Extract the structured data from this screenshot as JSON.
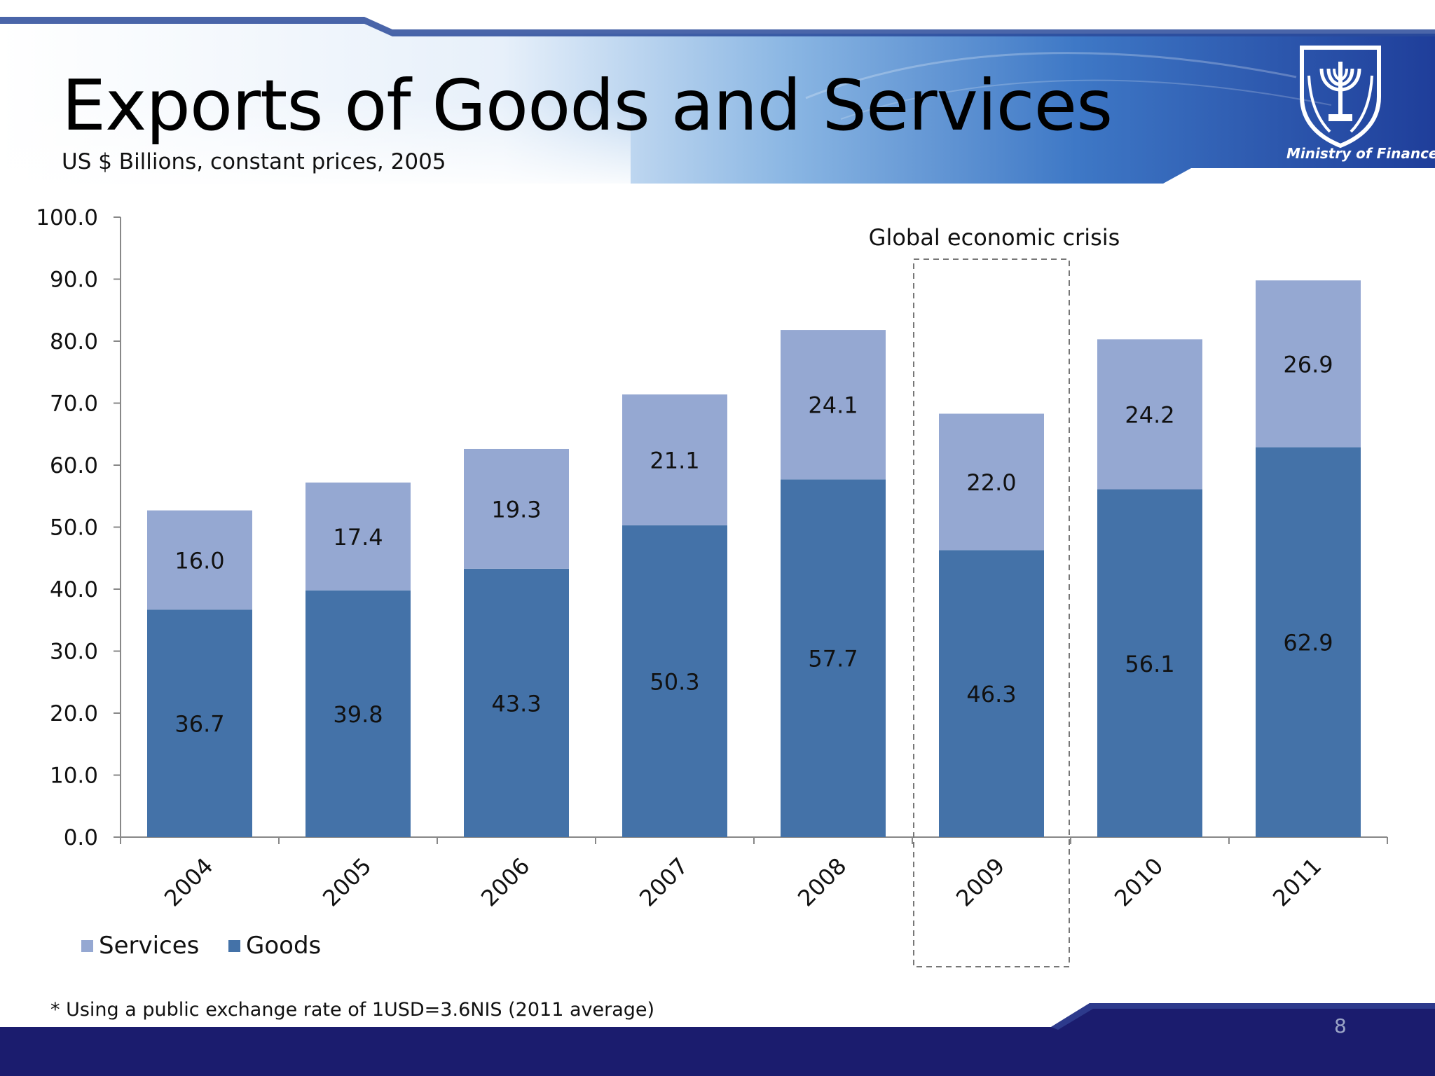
{
  "slide": {
    "title": "Exports of Goods and Services",
    "subtitle": "US $ Billions, constant prices, 2005",
    "footnote": "* Using a public exchange rate of 1USD=3.6NIS (2011 average)",
    "page_number": "8",
    "logo_caption": "Ministry of Finance",
    "colors": {
      "header_blue": "#1f3e9a",
      "footer_navy": "#1b1c6e"
    }
  },
  "chart_data": {
    "type": "bar",
    "stacked": true,
    "categories": [
      "2004",
      "2005",
      "2006",
      "2007",
      "2008",
      "2009",
      "2010",
      "2011"
    ],
    "series": [
      {
        "name": "Goods",
        "color": "#4472a8",
        "values": [
          36.7,
          39.8,
          43.3,
          50.3,
          57.7,
          46.3,
          56.1,
          62.9
        ]
      },
      {
        "name": "Services",
        "color": "#95a8d2",
        "values": [
          16.0,
          17.4,
          19.3,
          21.1,
          24.1,
          22.0,
          24.2,
          26.9
        ]
      }
    ],
    "ylim": [
      0,
      100
    ],
    "yticks": [
      "0.0",
      "10.0",
      "20.0",
      "30.0",
      "40.0",
      "50.0",
      "60.0",
      "70.0",
      "80.0",
      "90.0",
      "100.0"
    ],
    "annotation": {
      "text": "Global economic crisis",
      "category": "2009"
    },
    "legend": [
      "Services",
      "Goods"
    ],
    "legend_position": "bottom-left",
    "grid": false
  }
}
